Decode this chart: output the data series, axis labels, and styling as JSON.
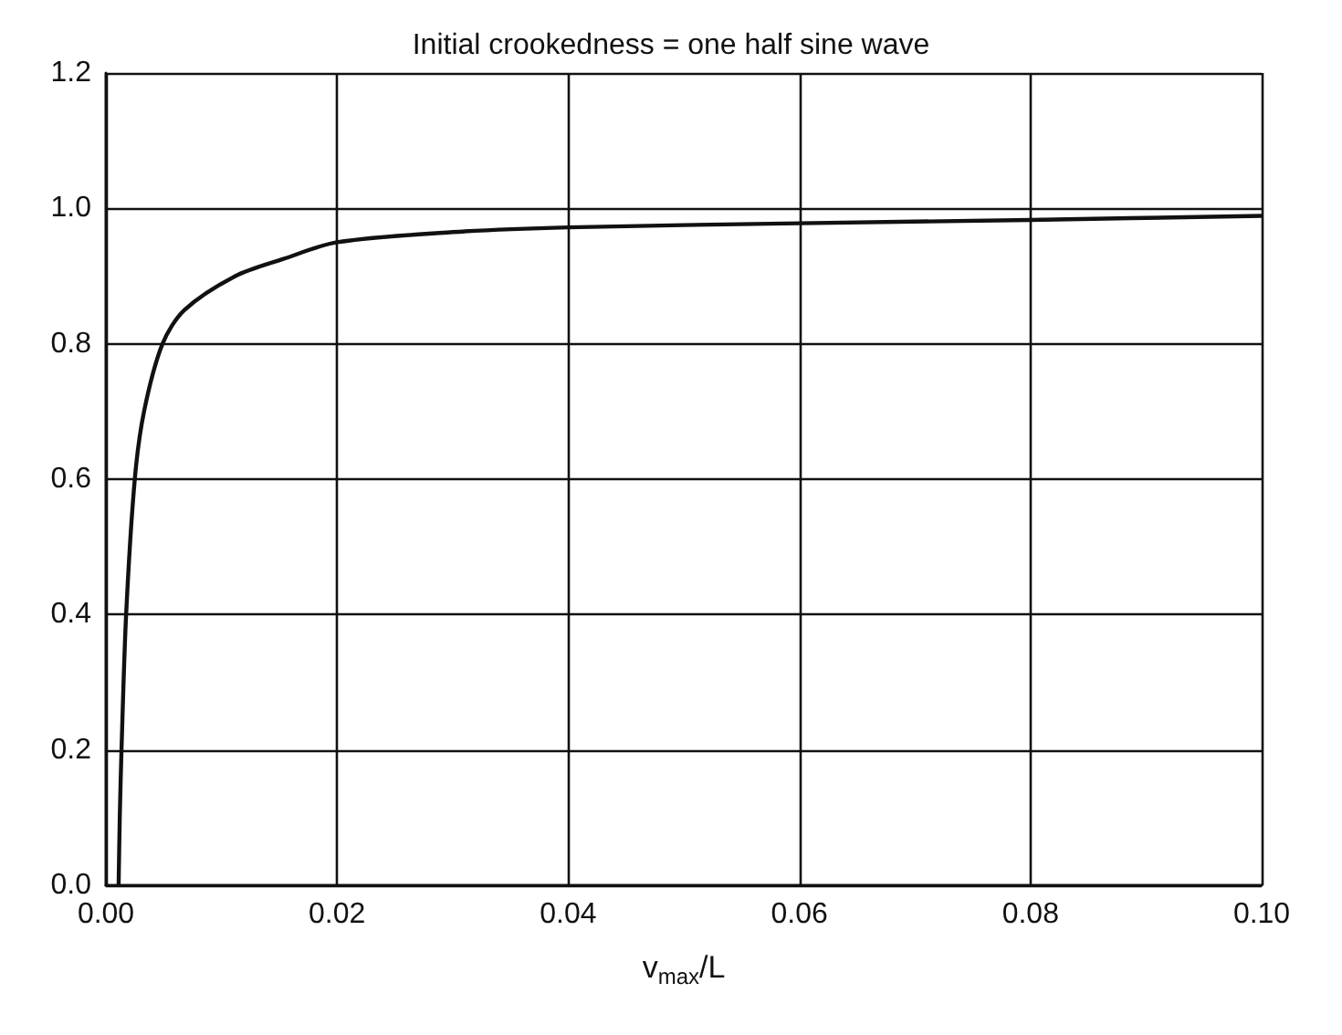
{
  "chart_data": {
    "type": "line",
    "title": "Initial crookedness = one half sine wave",
    "xlabel": "v$_{max}$/L",
    "series": [
      {
        "color": "#111111",
        "x": [
          0.0011,
          0.0012,
          0.00135,
          0.00175,
          0.0025,
          0.0033,
          0.0049,
          0.0068,
          0.0112,
          0.0153,
          0.02,
          0.03,
          0.04,
          0.06,
          0.08,
          0.1
        ],
        "values": [
          0,
          0.1,
          0.2,
          0.4,
          0.6,
          0.7,
          0.8,
          0.85,
          0.9,
          0.925,
          0.95,
          0.965,
          0.972,
          0.978,
          0.983,
          0.989
        ]
      }
    ],
    "xlim": [
      0,
      0.1
    ],
    "ylim": [
      0,
      1.2
    ],
    "xticks": [
      {
        "value": 0,
        "label": "0.00"
      },
      0.02,
      0.04,
      0.06,
      0.08,
      {
        "value": 0.1,
        "label": "0.10"
      }
    ],
    "yticks": [
      {
        "value": 0,
        "label": "0.0"
      },
      0.2,
      0.4,
      0.6,
      0.8,
      {
        "value": 1,
        "label": "1.0"
      },
      1.2
    ],
    "grid": true,
    "marker": "none",
    "line_style": "solid"
  }
}
